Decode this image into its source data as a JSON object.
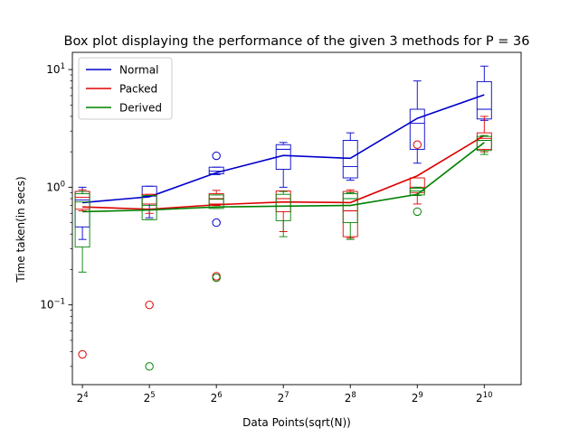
{
  "chart_data": {
    "type": "box",
    "title": "Box plot displaying the performance of the given 3 methods for P = 36",
    "xlabel": "Data Points(sqrt(N))",
    "ylabel": "Time taken(in secs)",
    "yscale": "log",
    "ylim": [
      0.021,
      14
    ],
    "grid": false,
    "legend_position": "top-left",
    "categories": [
      {
        "base": "2",
        "exp": "4"
      },
      {
        "base": "2",
        "exp": "5"
      },
      {
        "base": "2",
        "exp": "6"
      },
      {
        "base": "2",
        "exp": "7"
      },
      {
        "base": "2",
        "exp": "8"
      },
      {
        "base": "2",
        "exp": "9"
      },
      {
        "base": "2",
        "exp": "10"
      }
    ],
    "yticks": [
      {
        "value": 0.1,
        "base": "10",
        "exp": "−1"
      },
      {
        "value": 1,
        "base": "10",
        "exp": "0"
      },
      {
        "value": 10,
        "base": "10",
        "exp": "1"
      }
    ],
    "series": [
      {
        "name": "Normal",
        "color": "#0000cc",
        "line": [
          0.74,
          0.83,
          1.33,
          1.86,
          1.76,
          3.85,
          6.1
        ],
        "boxes": [
          {
            "wlo": 0.36,
            "q1": 0.46,
            "med": 0.78,
            "q3": 0.92,
            "whi": 1.0,
            "fliers": []
          },
          {
            "wlo": 0.55,
            "q1": 0.72,
            "med": 0.84,
            "q3": 1.02,
            "whi": 1.02,
            "fliers": []
          },
          {
            "wlo": 1.28,
            "q1": 1.3,
            "med": 1.37,
            "q3": 1.48,
            "whi": 1.48,
            "fliers": [
              1.85,
              0.5
            ]
          },
          {
            "wlo": 1.0,
            "q1": 1.42,
            "med": 2.1,
            "q3": 2.3,
            "whi": 2.4,
            "fliers": []
          },
          {
            "wlo": 1.15,
            "q1": 1.2,
            "med": 1.5,
            "q3": 2.5,
            "whi": 2.9,
            "fliers": []
          },
          {
            "wlo": 1.6,
            "q1": 2.1,
            "med": 3.5,
            "q3": 4.6,
            "whi": 8.0,
            "fliers": []
          },
          {
            "wlo": 3.7,
            "q1": 3.8,
            "med": 4.6,
            "q3": 7.9,
            "whi": 10.7,
            "fliers": []
          }
        ]
      },
      {
        "name": "Packed",
        "color": "#dd0000",
        "line": [
          0.68,
          0.65,
          0.71,
          0.75,
          0.74,
          1.25,
          2.75
        ],
        "boxes": [
          {
            "wlo": 0.63,
            "q1": 0.65,
            "med": 0.82,
            "q3": 0.92,
            "whi": 0.95,
            "fliers": [
              0.038
            ]
          },
          {
            "wlo": 0.6,
            "q1": 0.64,
            "med": 0.72,
            "q3": 0.87,
            "whi": 0.87,
            "fliers": [
              0.1
            ]
          },
          {
            "wlo": 0.7,
            "q1": 0.72,
            "med": 0.8,
            "q3": 0.88,
            "whi": 0.94,
            "fliers": [
              0.175
            ]
          },
          {
            "wlo": 0.42,
            "q1": 0.62,
            "med": 0.8,
            "q3": 0.93,
            "whi": 0.93,
            "fliers": []
          },
          {
            "wlo": 0.37,
            "q1": 0.38,
            "med": 0.63,
            "q3": 0.92,
            "whi": 0.95,
            "fliers": []
          },
          {
            "wlo": 0.72,
            "q1": 0.9,
            "med": 1.0,
            "q3": 1.2,
            "whi": 1.2,
            "fliers": [
              2.3
            ]
          },
          {
            "wlo": 2.0,
            "q1": 2.1,
            "med": 2.6,
            "q3": 2.9,
            "whi": 4.0,
            "fliers": []
          }
        ]
      },
      {
        "name": "Derived",
        "color": "#008000",
        "line": [
          0.62,
          0.64,
          0.68,
          0.69,
          0.7,
          0.87,
          2.4
        ],
        "boxes": [
          {
            "wlo": 0.19,
            "q1": 0.31,
            "med": 0.75,
            "q3": 0.88,
            "whi": 0.92,
            "fliers": []
          },
          {
            "wlo": 0.53,
            "q1": 0.53,
            "med": 0.7,
            "q3": 0.85,
            "whi": 0.85,
            "fliers": [
              0.03
            ]
          },
          {
            "wlo": 0.66,
            "q1": 0.66,
            "med": 0.79,
            "q3": 0.86,
            "whi": 0.86,
            "fliers": [
              0.17
            ]
          },
          {
            "wlo": 0.38,
            "q1": 0.52,
            "med": 0.69,
            "q3": 0.87,
            "whi": 0.92,
            "fliers": []
          },
          {
            "wlo": 0.36,
            "q1": 0.5,
            "med": 0.8,
            "q3": 0.88,
            "whi": 0.9,
            "fliers": []
          },
          {
            "wlo": 0.85,
            "q1": 0.86,
            "med": 0.93,
            "q3": 0.98,
            "whi": 1.0,
            "fliers": [
              0.62
            ]
          },
          {
            "wlo": 1.9,
            "q1": 2.05,
            "med": 2.5,
            "q3": 2.7,
            "whi": 2.75,
            "fliers": []
          }
        ]
      }
    ]
  }
}
